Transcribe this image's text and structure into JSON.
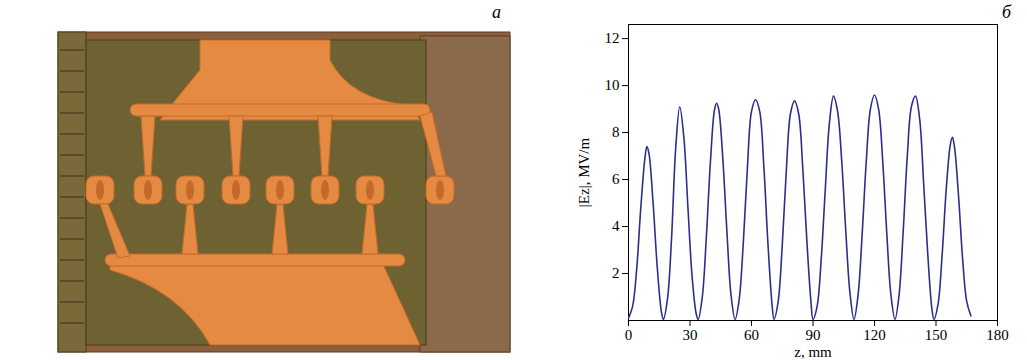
{
  "diagram": {
    "label": "a"
  },
  "chart_data": {
    "type": "line",
    "title": "б",
    "x_label": "z, mm",
    "y_label": "|Ez|, MV/m",
    "color": "#2b2f8c",
    "xlim": [
      0,
      180
    ],
    "xticks": [
      0,
      30,
      60,
      90,
      120,
      150,
      180
    ],
    "ylim": [
      0,
      12.6
    ],
    "yticks": [
      2,
      4,
      6,
      8,
      10,
      12
    ],
    "x": [
      0,
      2,
      4,
      6,
      8,
      9,
      10,
      12,
      14,
      16,
      17,
      19,
      21,
      23,
      25,
      27,
      29,
      31,
      33,
      34,
      36,
      38,
      40,
      42,
      43,
      44,
      46,
      48,
      50,
      52,
      54,
      56,
      58,
      60,
      62,
      64,
      66,
      68,
      70,
      71,
      73,
      75,
      77,
      79,
      81,
      83,
      85,
      87,
      89,
      90,
      92,
      94,
      96,
      98,
      100,
      102,
      104,
      106,
      108,
      110,
      112,
      114,
      116,
      118,
      120,
      122,
      124,
      126,
      128,
      130,
      132,
      134,
      136,
      138,
      140,
      142,
      144,
      146,
      148,
      149,
      151,
      153,
      155,
      157,
      158,
      159,
      161,
      163,
      165,
      167
    ],
    "values": [
      0.1,
      0.6,
      2.2,
      4.8,
      6.9,
      7.4,
      7.1,
      5.0,
      2.3,
      0.4,
      0.05,
      0.9,
      3.5,
      7.3,
      9.1,
      7.8,
      4.8,
      1.9,
      0.3,
      0.05,
      1.0,
      3.6,
      6.8,
      9.0,
      9.25,
      9.0,
      6.9,
      3.8,
      1.1,
      0.05,
      0.9,
      3.3,
      6.5,
      8.9,
      9.4,
      8.9,
      6.6,
      3.3,
      0.7,
      0.05,
      0.8,
      3.2,
      6.4,
      8.8,
      9.35,
      8.8,
      6.5,
      3.4,
      0.8,
      0.05,
      0.6,
      2.6,
      5.6,
      8.4,
      9.55,
      8.9,
      6.8,
      3.8,
      1.2,
      0.05,
      1.1,
      3.7,
      6.8,
      9.0,
      9.6,
      9.0,
      6.8,
      3.7,
      1.1,
      0.05,
      1.1,
      3.8,
      7.0,
      9.1,
      9.55,
      8.6,
      5.8,
      2.8,
      0.5,
      0.05,
      0.7,
      2.8,
      5.6,
      7.5,
      7.8,
      7.4,
      5.3,
      2.6,
      0.8,
      0.2
    ],
    "grid": false
  }
}
